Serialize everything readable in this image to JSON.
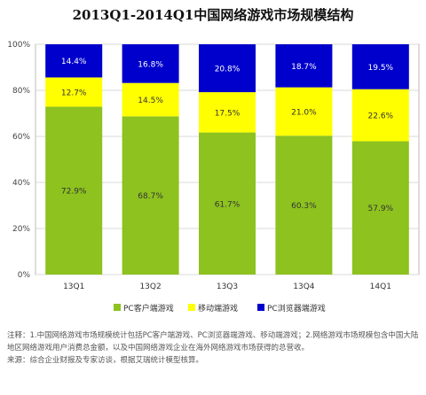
{
  "chart_data": {
    "type": "bar",
    "stacked": true,
    "percent": true,
    "title": "2013Q1-2014Q1中国网络游戏市场规模结构",
    "categories": [
      "13Q1",
      "13Q2",
      "13Q3",
      "13Q4",
      "14Q1"
    ],
    "series": [
      {
        "name": "PC客户端游戏",
        "color": "#8dc21f",
        "values": [
          72.9,
          68.7,
          61.7,
          60.3,
          57.9
        ],
        "labels": [
          "72.9%",
          "68.7%",
          "61.7%",
          "60.3%",
          "57.9%"
        ]
      },
      {
        "name": "移动端游戏",
        "color": "#ffff00",
        "values": [
          12.7,
          14.5,
          17.5,
          21.0,
          22.6
        ],
        "labels": [
          "12.7%",
          "14.5%",
          "17.5%",
          "21.0%",
          "22.6%"
        ]
      },
      {
        "name": "PC浏览器端游戏",
        "color": "#0000cc",
        "values": [
          14.4,
          16.8,
          20.8,
          18.7,
          19.5
        ],
        "labels": [
          "14.4%",
          "16.8%",
          "20.8%",
          "18.7%",
          "19.5%"
        ]
      }
    ],
    "ylim": [
      0,
      100
    ],
    "yticks": [
      "0%",
      "20%",
      "40%",
      "60%",
      "80%",
      "100%"
    ],
    "grid": true,
    "legend": "bottom"
  },
  "notes": {
    "line1": "注释：1.中国网络游戏市场规模统计包括PC客户端游戏、PC浏览器端游戏、移动端游戏；2.网络游戏市场规模包含中国大陆地区网络游戏用户消费总金额，以及中国网络游戏企业在海外网络游戏市场获得的总营收。",
    "line2": "来源：综合企业财报及专家访谈，根据艾瑞统计模型核算。"
  }
}
